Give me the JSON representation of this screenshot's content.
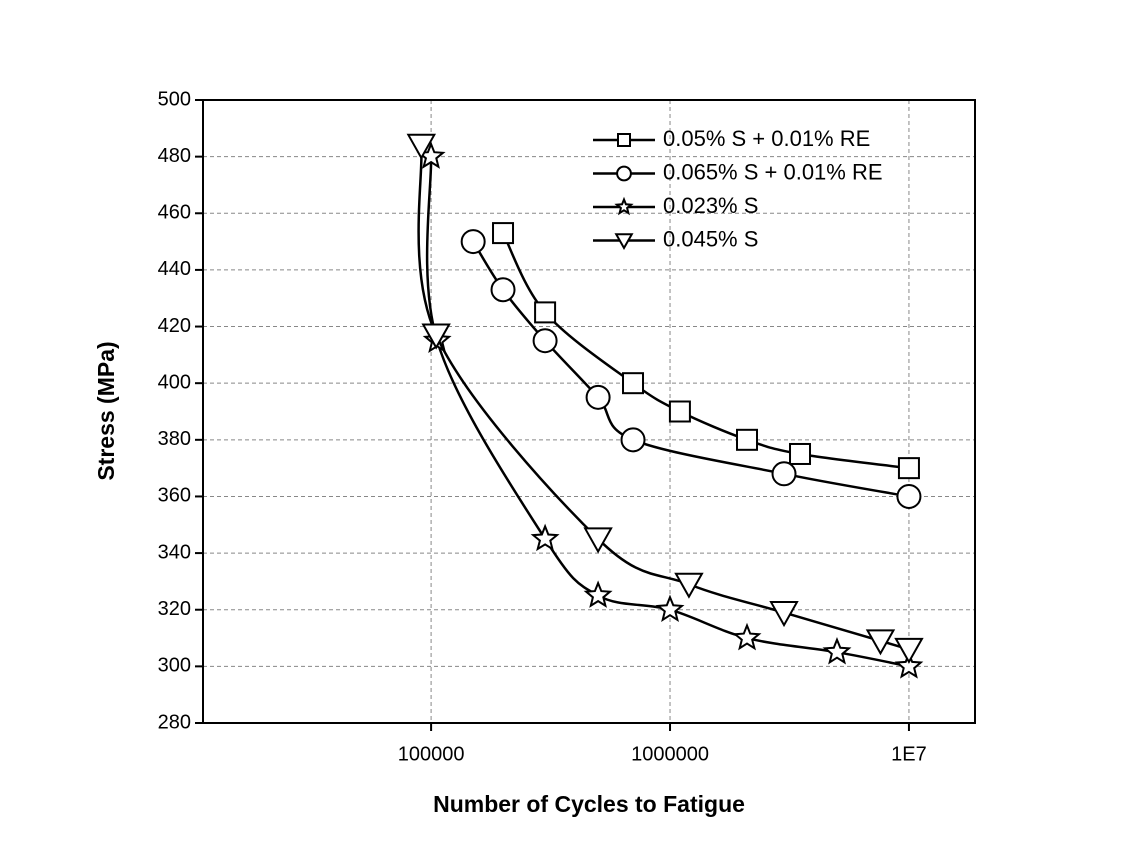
{
  "chart_data": {
    "type": "line",
    "x_label": "Number of Cycles to Fatigue",
    "y_label": "Stress (MPa)",
    "xscale": "log",
    "xlim": [
      11100,
      18900000
    ],
    "xticks": [
      100000,
      1000000,
      {
        "value": 10000000,
        "label": "1E7"
      }
    ],
    "ylim": [
      280,
      500
    ],
    "yticks": [
      280,
      300,
      320,
      340,
      360,
      380,
      400,
      420,
      440,
      460,
      480,
      500
    ],
    "grid": true,
    "legend": "upper right",
    "series": [
      {
        "name": "0.05% S + 0.01% RE",
        "color": "#000000",
        "marker": "square",
        "x": [
          200000,
          300000,
          700000,
          1100000,
          2100000,
          3500000,
          10000000
        ],
        "values": [
          453,
          425,
          400,
          390,
          380,
          375,
          370
        ]
      },
      {
        "name": "0.065% S + 0.01% RE",
        "color": "#000000",
        "marker": "circle",
        "x": [
          150000,
          200000,
          300000,
          500000,
          700000,
          3000000,
          10000000
        ],
        "values": [
          450,
          433,
          415,
          395,
          380,
          368,
          360
        ]
      },
      {
        "name": "0.023% S",
        "color": "#000000",
        "marker": "star",
        "x": [
          100000,
          106000,
          300000,
          500000,
          1000000,
          2100000,
          5000000,
          10000000
        ],
        "values": [
          480,
          415,
          345,
          325,
          320,
          310,
          305,
          300
        ]
      },
      {
        "name": "0.045% S",
        "color": "#000000",
        "marker": "triangle-down",
        "x": [
          91000,
          105000,
          500000,
          1200000,
          3000000,
          7600000,
          10000000
        ],
        "values": [
          484,
          417,
          345,
          329,
          319,
          309,
          306
        ]
      }
    ]
  }
}
